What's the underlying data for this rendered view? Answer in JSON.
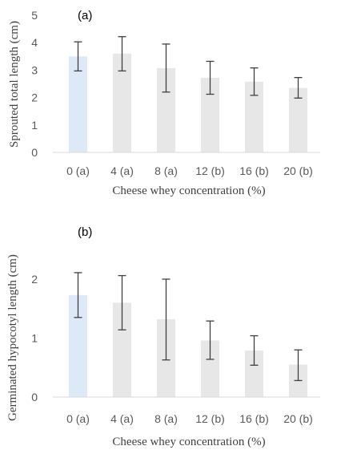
{
  "chart_data": [
    {
      "type": "bar",
      "panel_label": "(a)",
      "xlabel": "Cheese whey concentration (%)",
      "ylabel": "Sprouted total length (cm)",
      "ylim": [
        0,
        5
      ],
      "yticks": [
        "0",
        "1",
        "2",
        "3",
        "4",
        "5"
      ],
      "categories": [
        "0 (a)",
        "4 (a)",
        "8 (a)",
        "12 (b)",
        "16 (b)",
        "20 (b)"
      ],
      "values": [
        3.5,
        3.6,
        3.07,
        2.72,
        2.58,
        2.35
      ],
      "error_low": [
        2.97,
        2.97,
        2.2,
        2.12,
        2.08,
        1.98
      ],
      "error_high": [
        4.03,
        4.22,
        3.95,
        3.32,
        3.08,
        2.73
      ],
      "grid": false,
      "colors": [
        "#dde9f7",
        "#e7e7e7",
        "#e7e7e7",
        "#e7e7e7",
        "#e7e7e7",
        "#e7e7e7"
      ]
    },
    {
      "type": "bar",
      "panel_label": "(b)",
      "xlabel": "Cheese whey concentration (%)",
      "ylabel": "Germinated hypocotyl length (cm)",
      "ylim": [
        0,
        2
      ],
      "yticks": [
        "0",
        "1",
        "2"
      ],
      "categories": [
        "0 (a)",
        "4 (a)",
        "8 (a)",
        "12 (b)",
        "16 (b)",
        "20 (b)"
      ],
      "values": [
        1.73,
        1.6,
        1.32,
        0.96,
        0.79,
        0.55
      ],
      "error_low": [
        1.35,
        1.14,
        0.63,
        0.64,
        0.54,
        0.28
      ],
      "error_high": [
        2.11,
        2.06,
        2.0,
        1.29,
        1.04,
        0.8
      ],
      "grid": false,
      "colors": [
        "#dde9f7",
        "#e7e7e7",
        "#e7e7e7",
        "#e7e7e7",
        "#e7e7e7",
        "#e7e7e7"
      ]
    }
  ]
}
